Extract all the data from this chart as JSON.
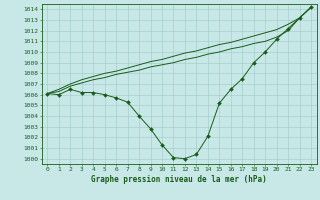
{
  "xlabel": "Graphe pression niveau de la mer (hPa)",
  "ylim": [
    999.5,
    1014.5
  ],
  "xlim": [
    -0.5,
    23.5
  ],
  "yticks": [
    1000,
    1001,
    1002,
    1003,
    1004,
    1005,
    1006,
    1007,
    1008,
    1009,
    1010,
    1011,
    1012,
    1013,
    1014
  ],
  "xticks": [
    0,
    1,
    2,
    3,
    4,
    5,
    6,
    7,
    8,
    9,
    10,
    11,
    12,
    13,
    14,
    15,
    16,
    17,
    18,
    19,
    20,
    21,
    22,
    23
  ],
  "bg_color": "#c8e8e8",
  "grid_color": "#a0c8c8",
  "line_color": "#1a5c1a",
  "series1": [
    1006.1,
    1006.0,
    1006.5,
    1006.2,
    1006.2,
    1006.0,
    1005.7,
    1005.3,
    1004.0,
    1002.8,
    1001.3,
    1000.1,
    1000.0,
    1000.4,
    1002.1,
    1005.2,
    1006.5,
    1007.5,
    1009.0,
    1010.0,
    1011.2,
    1012.2,
    1013.2,
    1014.2
  ],
  "series2": [
    1006.1,
    1006.3,
    1006.8,
    1007.1,
    1007.4,
    1007.6,
    1007.9,
    1008.1,
    1008.3,
    1008.6,
    1008.8,
    1009.0,
    1009.3,
    1009.5,
    1009.8,
    1010.0,
    1010.3,
    1010.5,
    1010.8,
    1011.0,
    1011.4,
    1012.0,
    1013.2,
    1014.2
  ],
  "series3": [
    1006.1,
    1006.5,
    1007.0,
    1007.4,
    1007.7,
    1008.0,
    1008.2,
    1008.5,
    1008.8,
    1009.1,
    1009.3,
    1009.6,
    1009.9,
    1010.1,
    1010.4,
    1010.7,
    1010.9,
    1011.2,
    1011.5,
    1011.8,
    1012.1,
    1012.6,
    1013.2,
    1014.2
  ],
  "tick_fontsize": 4.5,
  "label_fontsize": 5.5,
  "marker_size": 2.0,
  "linewidth": 0.7
}
